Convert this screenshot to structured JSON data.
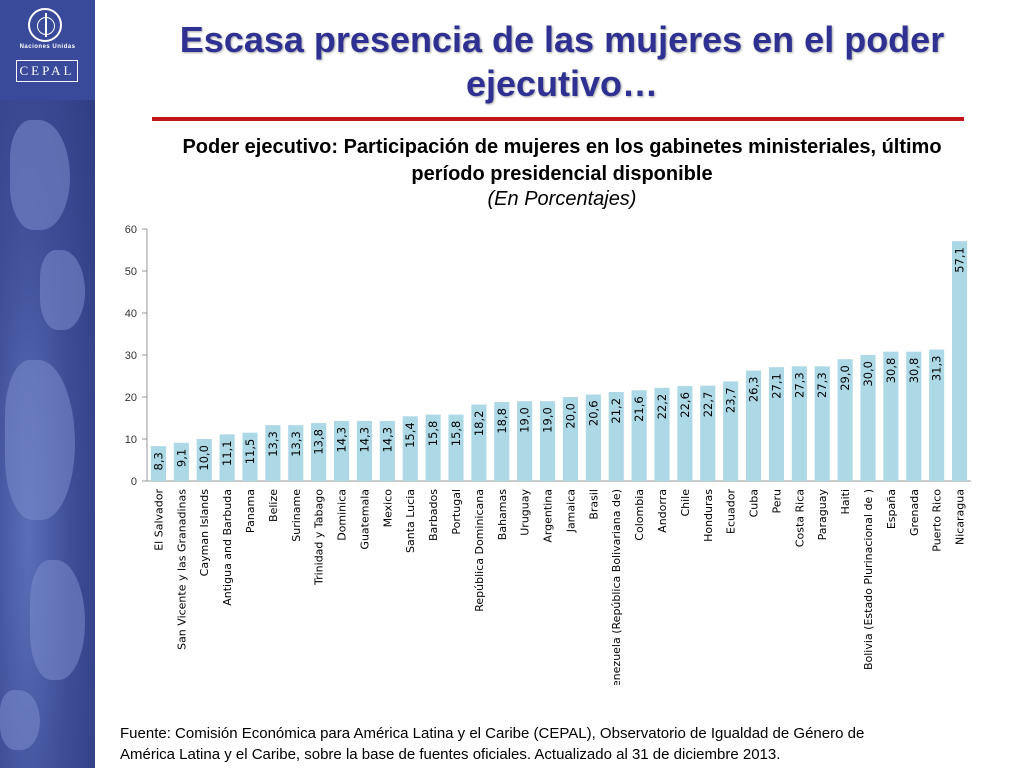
{
  "header": {
    "title_line1": "Escasa presencia de las mujeres en el poder",
    "title_line2": "ejecutivo…",
    "subtitle_line1": "Poder ejecutivo: Participación de mujeres en los gabinetes ministeriales, último",
    "subtitle_line2": "período presidencial disponible",
    "units": "(En Porcentajes)"
  },
  "logos": {
    "un_text": "Naciones Unidas",
    "cepal_text": "CEPAL"
  },
  "colors": {
    "title": "#2e3192",
    "rule": "#c0161c",
    "bar": "#add8e6",
    "sidebar": "#3d4d96"
  },
  "chart_data": {
    "type": "bar",
    "categories": [
      "El Salvador",
      "San Vicente y las Granadinas",
      "Cayman Islands",
      "Antigua and Barbuda",
      "Panama",
      "Belize",
      "Suriname",
      "Trinidad y Tabago",
      "Dominica",
      "Guatemala",
      "Mexico",
      "Santa Lucia",
      "Barbados",
      "Portugal",
      "República Dominicana",
      "Bahamas",
      "Uruguay",
      "Argentina",
      "Jamaica",
      "Brasil",
      "Venezuela (República Bolivariana de)",
      "Colombia",
      "Andorra",
      "Chile",
      "Honduras",
      "Ecuador",
      "Cuba",
      "Peru",
      "Costa Rica",
      "Paraguay",
      "Haiti",
      "Bolivia (Estado Plurinacional de )",
      "España",
      "Grenada",
      "Puerto Rico",
      "Nicaragua"
    ],
    "values": [
      8.3,
      9.1,
      10.0,
      11.1,
      11.5,
      13.3,
      13.3,
      13.8,
      14.3,
      14.3,
      14.3,
      15.4,
      15.8,
      15.8,
      18.2,
      18.8,
      19.0,
      19.0,
      20.0,
      20.6,
      21.2,
      21.6,
      22.2,
      22.6,
      22.7,
      23.7,
      26.3,
      27.1,
      27.3,
      27.3,
      29.0,
      30.0,
      30.8,
      30.8,
      31.3,
      57.1
    ],
    "labels": [
      "8,3",
      "9,1",
      "10,0",
      "11,1",
      "11,5",
      "13,3",
      "13,3",
      "13,8",
      "14,3",
      "14,3",
      "14,3",
      "15,4",
      "15,8",
      "15,8",
      "18,2",
      "18,8",
      "19,0",
      "19,0",
      "20,0",
      "20,6",
      "21,2",
      "21,6",
      "22,2",
      "22,6",
      "22,7",
      "23,7",
      "26,3",
      "27,1",
      "27,3",
      "27,3",
      "29,0",
      "30,0",
      "30,8",
      "30,8",
      "31,3",
      "57,1"
    ],
    "yticks": [
      "0",
      "10",
      "20",
      "30",
      "40",
      "50",
      "60"
    ],
    "ylim": [
      0,
      60
    ],
    "grid": false,
    "legend": "none"
  },
  "footer": {
    "source_line1": "Fuente: Comisión Económica para América Latina y el Caribe (CEPAL), Observatorio de Igualdad de Género de",
    "source_line2": "América Latina y el Caribe, sobre la base de fuentes oficiales. Actualizado al 31 de diciembre 2013."
  }
}
